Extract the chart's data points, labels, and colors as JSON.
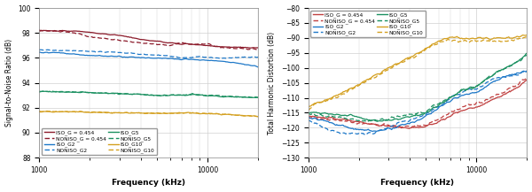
{
  "left": {
    "xlabel": "Frequency (kHz)",
    "ylabel": "Signal-to-Noise Ratio (dB)",
    "xlim": [
      1000,
      20000
    ],
    "ylim": [
      88,
      100
    ],
    "yticks": [
      88,
      90,
      92,
      94,
      96,
      98,
      100
    ],
    "xticks": [
      1000,
      10000
    ],
    "xtick_labels": [
      "1000",
      "10000"
    ],
    "colors": {
      "G0454": "#8B1A2A",
      "G2": "#1E78C8",
      "G5": "#1A9060",
      "G10": "#D4A020"
    }
  },
  "right": {
    "xlabel": "Frequency (kHz)",
    "ylabel": "Total Harmonic Distortion (dB)",
    "xlim": [
      1000,
      20000
    ],
    "ylim": [
      -130,
      -80
    ],
    "yticks": [
      -130,
      -125,
      -120,
      -115,
      -110,
      -105,
      -100,
      -95,
      -90,
      -85,
      -80
    ],
    "xticks": [
      1000,
      10000
    ],
    "xtick_labels": [
      "1000",
      "10000"
    ],
    "colors": {
      "G0454": "#C04040",
      "G2": "#1E78C8",
      "G5": "#1A9060",
      "G10": "#D4A020"
    }
  },
  "legend_labels": {
    "ISO_G0454": "ISO_G = 0.454",
    "NONISO_G0454": "NONISO_G = 0.454",
    "ISO_G2": "ISO_G2",
    "NONISO_G2": "NONISO_G2",
    "ISO_G5": "ISO_G5",
    "NONISO_G5": "NONISO_G5",
    "ISO_G10": "ISO_G10",
    "NONISO_G10": "NONISO_G10"
  },
  "bg_color": "#ffffff",
  "grid_color": "#d0d0d0",
  "left_series": {
    "ISO_G0454": [
      [
        1000,
        1200,
        1400,
        1600,
        1800,
        2000,
        2500,
        3000,
        3500,
        4000,
        4500,
        5000,
        5500,
        6000,
        6500,
        7000,
        7500,
        8000,
        9000,
        10000,
        11000,
        12000,
        14000,
        16000,
        18000,
        20000
      ],
      [
        98.2,
        98.18,
        98.17,
        98.15,
        98.12,
        98.05,
        97.9,
        97.8,
        97.65,
        97.5,
        97.4,
        97.35,
        97.25,
        97.2,
        97.15,
        97.1,
        97.12,
        97.1,
        97.05,
        97.0,
        96.95,
        96.9,
        96.88,
        96.85,
        96.82,
        96.8
      ]
    ],
    "NONISO_G0454": [
      [
        1000,
        1200,
        1400,
        1600,
        1800,
        2000,
        2500,
        3000,
        3500,
        4000,
        4500,
        5000,
        5500,
        6000,
        6500,
        7000,
        7500,
        8000,
        9000,
        10000,
        11000,
        12000,
        14000,
        16000,
        18000,
        20000
      ],
      [
        98.18,
        98.15,
        98.1,
        98.0,
        97.85,
        97.7,
        97.55,
        97.4,
        97.3,
        97.2,
        97.15,
        97.1,
        97.05,
        97.0,
        97.15,
        97.2,
        97.15,
        97.1,
        97.1,
        97.1,
        96.95,
        96.85,
        96.8,
        96.75,
        96.72,
        96.7
      ]
    ],
    "ISO_G2": [
      [
        1000,
        1200,
        1400,
        1600,
        1800,
        2000,
        2500,
        3000,
        3500,
        4000,
        4500,
        5000,
        5500,
        6000,
        6500,
        7000,
        7500,
        8000,
        9000,
        10000,
        11000,
        12000,
        14000,
        16000,
        18000,
        20000
      ],
      [
        96.45,
        96.42,
        96.38,
        96.3,
        96.25,
        96.2,
        96.15,
        96.1,
        96.05,
        96.02,
        96.0,
        95.98,
        95.95,
        95.92,
        95.9,
        95.88,
        95.9,
        95.88,
        95.85,
        95.82,
        95.78,
        95.72,
        95.62,
        95.5,
        95.4,
        95.3
      ]
    ],
    "NONISO_G2": [
      [
        1000,
        1200,
        1400,
        1600,
        1800,
        2000,
        2500,
        3000,
        3500,
        4000,
        4500,
        5000,
        5500,
        6000,
        6500,
        7000,
        7500,
        8000,
        9000,
        10000,
        11000,
        12000,
        14000,
        16000,
        18000,
        20000
      ],
      [
        96.65,
        96.62,
        96.6,
        96.58,
        96.55,
        96.52,
        96.48,
        96.42,
        96.35,
        96.3,
        96.25,
        96.22,
        96.18,
        96.12,
        96.08,
        96.0,
        96.02,
        96.05,
        96.08,
        96.05,
        96.0,
        95.95,
        96.0,
        96.05,
        96.05,
        96.05
      ]
    ],
    "ISO_G5": [
      [
        1000,
        1200,
        1400,
        1600,
        1800,
        2000,
        2500,
        3000,
        3500,
        4000,
        4500,
        5000,
        5500,
        6000,
        6500,
        7000,
        7500,
        8000,
        9000,
        10000,
        11000,
        12000,
        14000,
        16000,
        18000,
        20000
      ],
      [
        93.3,
        93.3,
        93.28,
        93.26,
        93.24,
        93.22,
        93.18,
        93.14,
        93.1,
        93.06,
        93.02,
        93.0,
        92.98,
        93.0,
        93.0,
        93.0,
        93.02,
        93.04,
        93.0,
        92.98,
        92.95,
        92.9,
        92.87,
        92.85,
        92.84,
        92.82
      ]
    ],
    "NONISO_G5": [
      [
        1000,
        1200,
        1400,
        1600,
        1800,
        2000,
        2500,
        3000,
        3500,
        4000,
        4500,
        5000,
        5500,
        6000,
        6500,
        7000,
        7500,
        8000,
        9000,
        10000,
        11000,
        12000,
        14000,
        16000,
        18000,
        20000
      ],
      [
        93.3,
        93.3,
        93.28,
        93.26,
        93.24,
        93.22,
        93.18,
        93.14,
        93.1,
        93.06,
        93.02,
        93.0,
        92.98,
        93.0,
        93.0,
        93.02,
        93.05,
        93.08,
        93.05,
        93.02,
        93.0,
        92.95,
        92.9,
        92.88,
        92.86,
        92.84
      ]
    ],
    "ISO_G10": [
      [
        1000,
        1200,
        1400,
        1600,
        1800,
        2000,
        2500,
        3000,
        3500,
        4000,
        4500,
        5000,
        5500,
        6000,
        6500,
        7000,
        7500,
        8000,
        9000,
        10000,
        11000,
        12000,
        14000,
        16000,
        18000,
        20000
      ],
      [
        91.72,
        91.7,
        91.7,
        91.68,
        91.66,
        91.64,
        91.62,
        91.6,
        91.6,
        91.58,
        91.57,
        91.56,
        91.56,
        91.56,
        91.56,
        91.56,
        91.58,
        91.6,
        91.56,
        91.54,
        91.52,
        91.5,
        91.44,
        91.38,
        91.34,
        91.3
      ]
    ],
    "NONISO_G10": [
      [
        1000,
        1200,
        1400,
        1600,
        1800,
        2000,
        2500,
        3000,
        3500,
        4000,
        4500,
        5000,
        5500,
        6000,
        6500,
        7000,
        7500,
        8000,
        9000,
        10000,
        11000,
        12000,
        14000,
        16000,
        18000,
        20000
      ],
      [
        91.72,
        91.7,
        91.7,
        91.68,
        91.66,
        91.64,
        91.62,
        91.6,
        91.6,
        91.58,
        91.57,
        91.56,
        91.56,
        91.56,
        91.56,
        91.56,
        91.58,
        91.6,
        91.56,
        91.54,
        91.52,
        91.5,
        91.44,
        91.38,
        91.34,
        91.3
      ]
    ]
  },
  "right_series": {
    "ISO_G0454": [
      [
        1000,
        1200,
        1500,
        2000,
        2500,
        3000,
        3500,
        4000,
        4500,
        5000,
        5500,
        6000,
        7000,
        8000,
        9000,
        10000,
        12000,
        15000,
        20000
      ],
      [
        -116.2,
        -116.5,
        -117.0,
        -118.0,
        -119.0,
        -119.5,
        -119.8,
        -120.0,
        -119.8,
        -119.5,
        -118.8,
        -118.0,
        -116.0,
        -114.5,
        -113.5,
        -113.0,
        -111.0,
        -108.5,
        -104.0
      ]
    ],
    "NONISO_G0454": [
      [
        1000,
        1200,
        1500,
        2000,
        2500,
        3000,
        3500,
        4000,
        4500,
        5000,
        5500,
        6000,
        7000,
        8000,
        9000,
        10000,
        12000,
        15000,
        20000
      ],
      [
        -116.5,
        -117.0,
        -117.5,
        -118.5,
        -118.8,
        -119.2,
        -119.5,
        -119.6,
        -119.3,
        -119.0,
        -118.0,
        -117.0,
        -115.0,
        -113.5,
        -112.5,
        -112.0,
        -110.0,
        -107.5,
        -103.0
      ]
    ],
    "ISO_G2": [
      [
        1000,
        1200,
        1500,
        2000,
        2500,
        3000,
        3500,
        4000,
        4500,
        5000,
        5500,
        6000,
        7000,
        8000,
        9000,
        10000,
        12000,
        15000,
        20000
      ],
      [
        -116.5,
        -117.5,
        -119.0,
        -120.5,
        -121.0,
        -120.5,
        -119.5,
        -118.5,
        -117.5,
        -116.0,
        -115.0,
        -113.5,
        -111.0,
        -109.5,
        -108.5,
        -108.0,
        -105.5,
        -103.0,
        -101.0
      ]
    ],
    "NONISO_G2": [
      [
        1000,
        1200,
        1500,
        2000,
        2500,
        3000,
        3500,
        4000,
        4500,
        5000,
        5500,
        6000,
        7000,
        8000,
        9000,
        10000,
        12000,
        15000,
        20000
      ],
      [
        -117.5,
        -119.5,
        -121.5,
        -122.0,
        -121.5,
        -120.0,
        -118.5,
        -117.5,
        -116.5,
        -115.5,
        -114.0,
        -113.0,
        -110.0,
        -108.5,
        -107.5,
        -107.0,
        -104.5,
        -103.0,
        -101.0
      ]
    ],
    "ISO_G5": [
      [
        1000,
        1200,
        1500,
        2000,
        2500,
        3000,
        3500,
        4000,
        4500,
        5000,
        5500,
        6000,
        7000,
        8000,
        9000,
        10000,
        12000,
        15000,
        20000
      ],
      [
        -115.0,
        -115.0,
        -115.5,
        -116.5,
        -117.5,
        -117.5,
        -117.0,
        -116.5,
        -115.8,
        -115.0,
        -113.5,
        -112.5,
        -110.0,
        -108.0,
        -107.0,
        -106.0,
        -103.0,
        -100.0,
        -95.0
      ]
    ],
    "NONISO_G5": [
      [
        1000,
        1200,
        1500,
        2000,
        2500,
        3000,
        3500,
        4000,
        4500,
        5000,
        5500,
        6000,
        7000,
        8000,
        9000,
        10000,
        12000,
        15000,
        20000
      ],
      [
        -115.5,
        -116.0,
        -116.5,
        -117.5,
        -117.5,
        -116.8,
        -116.2,
        -115.8,
        -115.2,
        -114.5,
        -113.0,
        -112.0,
        -110.0,
        -108.0,
        -107.0,
        -106.0,
        -103.0,
        -100.0,
        -95.5
      ]
    ],
    "ISO_G10": [
      [
        1000,
        1200,
        1500,
        2000,
        2500,
        3000,
        3500,
        4000,
        4500,
        5000,
        5500,
        6000,
        7000,
        8000,
        9000,
        10000,
        12000,
        15000,
        20000
      ],
      [
        -113.0,
        -111.0,
        -109.0,
        -105.5,
        -102.5,
        -100.0,
        -98.0,
        -96.5,
        -95.0,
        -93.5,
        -92.0,
        -91.0,
        -90.0,
        -90.0,
        -90.0,
        -90.0,
        -90.0,
        -90.0,
        -89.0
      ]
    ],
    "NONISO_G10": [
      [
        1000,
        1200,
        1500,
        2000,
        2500,
        3000,
        3500,
        4000,
        4500,
        5000,
        5500,
        6000,
        7000,
        8000,
        9000,
        10000,
        12000,
        15000,
        20000
      ],
      [
        -113.5,
        -111.5,
        -109.5,
        -106.0,
        -103.0,
        -100.5,
        -98.5,
        -97.0,
        -95.5,
        -94.0,
        -92.5,
        -91.5,
        -91.0,
        -91.0,
        -91.0,
        -91.0,
        -91.0,
        -91.0,
        -89.5
      ]
    ]
  }
}
